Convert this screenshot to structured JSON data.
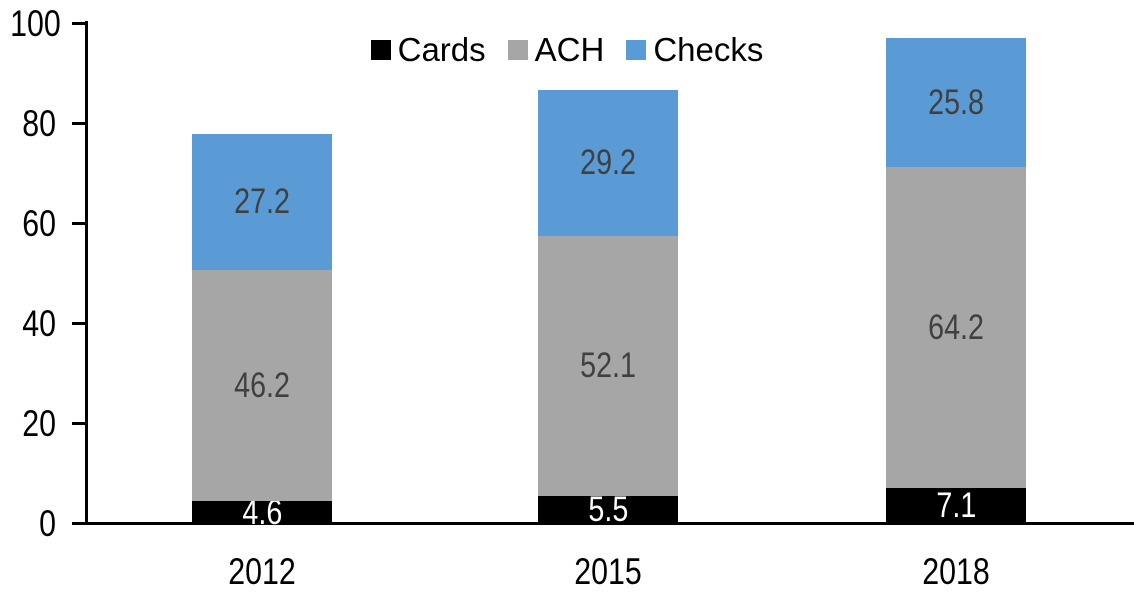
{
  "chart_data": {
    "type": "bar",
    "stacked": true,
    "categories": [
      "2012",
      "2015",
      "2018"
    ],
    "series": [
      {
        "name": "Cards",
        "color": "#000000",
        "label_color": "#ffffff",
        "values": [
          4.6,
          5.5,
          7.1
        ]
      },
      {
        "name": "ACH",
        "color": "#a6a6a6",
        "label_color": "#404040",
        "values": [
          46.2,
          52.1,
          64.2
        ]
      },
      {
        "name": "Checks",
        "color": "#5b9bd5",
        "label_color": "#404040",
        "values": [
          27.2,
          29.2,
          25.8
        ]
      }
    ],
    "totals": [
      78.0,
      86.8,
      97.1
    ],
    "ylim": [
      0,
      100
    ],
    "yticks": [
      0,
      20,
      40,
      60,
      80,
      100
    ],
    "xlabel": "",
    "ylabel": "",
    "title": "",
    "grid": false,
    "legend_position": "top-center",
    "axis_color": "#000000",
    "background": "#ffffff"
  }
}
